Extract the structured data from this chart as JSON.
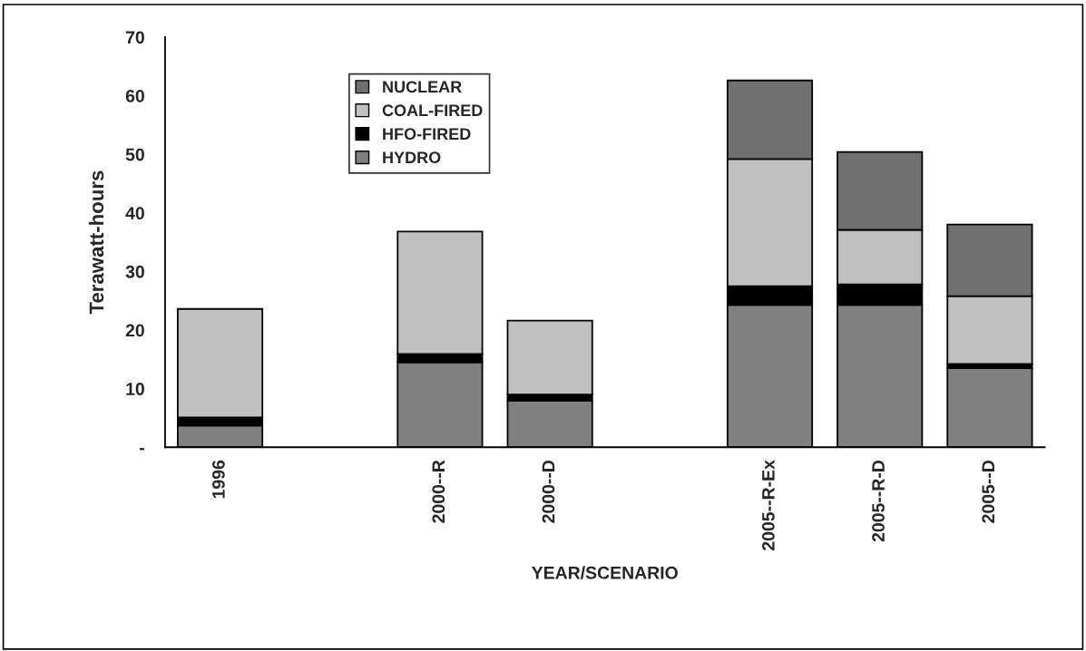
{
  "chart_data": {
    "type": "bar",
    "stacked": true,
    "xlabel": "YEAR/SCENARIO",
    "ylabel": "Terawatt-hours",
    "categories": [
      "1996",
      null,
      "2000--R",
      "2000--D",
      null,
      "2005--R-Ex",
      "2005--R-D",
      "2005--D"
    ],
    "series": [
      {
        "name": "HYDRO",
        "color": "#808080",
        "values": [
          3.7,
          null,
          14.5,
          7.9,
          null,
          24.3,
          24.3,
          13.5
        ]
      },
      {
        "name": "HFO-FIRED",
        "color": "#000000",
        "values": [
          1.4,
          null,
          1.4,
          1.1,
          null,
          3.2,
          3.5,
          0.7
        ]
      },
      {
        "name": "COAL-FIRED",
        "color": "#c0c0c0",
        "values": [
          18.5,
          null,
          20.9,
          12.6,
          null,
          21.7,
          9.3,
          11.6
        ]
      },
      {
        "name": "NUCLEAR",
        "color": "#707070",
        "values": [
          null,
          null,
          null,
          null,
          null,
          13.4,
          13.3,
          12.2
        ]
      }
    ],
    "ylim": [
      0,
      70
    ],
    "yticks": [
      {
        "value": 0,
        "label": "-"
      },
      10,
      20,
      30,
      40,
      50,
      60,
      70
    ],
    "grid": false,
    "legend": "top left"
  }
}
